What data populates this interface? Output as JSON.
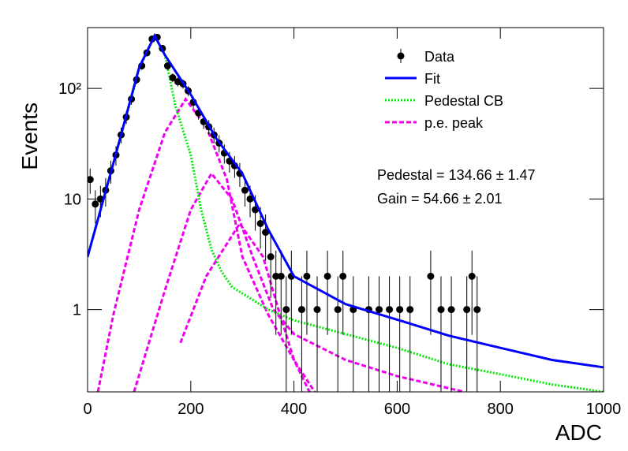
{
  "chart_data": {
    "type": "scatter",
    "x_label": "ADC",
    "y_label": "Events",
    "xlim": [
      0,
      1000
    ],
    "ylim": [
      0.18,
      355
    ],
    "log_y": true,
    "xticks": [
      0,
      200,
      400,
      600,
      800,
      1000
    ],
    "yticks": [
      1,
      10,
      {
        "value": 100,
        "label": "10²"
      }
    ],
    "legend": "top-right",
    "annotations": [
      "Pedestal = 134.66 ± 1.47",
      "Gain = 54.66 ± 2.01"
    ],
    "data": {
      "name": "Data",
      "color": "#000000",
      "x": [
        5,
        15,
        25,
        35,
        45,
        55,
        65,
        75,
        85,
        95,
        105,
        115,
        125,
        135,
        145,
        155,
        165,
        175,
        185,
        195,
        205,
        215,
        225,
        235,
        245,
        255,
        265,
        275,
        285,
        295,
        305,
        315,
        325,
        335,
        345,
        355,
        365,
        375,
        385,
        395,
        415,
        425,
        445,
        465,
        485,
        495,
        515,
        545,
        565,
        585,
        605,
        625,
        665,
        685,
        705,
        735,
        745,
        755
      ],
      "values": [
        15,
        9,
        10,
        12,
        18,
        25,
        38,
        55,
        80,
        120,
        160,
        210,
        280,
        290,
        230,
        160,
        125,
        115,
        110,
        95,
        75,
        60,
        50,
        45,
        38,
        32,
        26,
        22,
        20,
        17,
        12,
        10,
        8,
        6,
        5,
        3,
        2,
        2,
        1,
        2,
        1,
        2,
        1,
        2,
        1,
        2,
        1,
        1,
        1,
        1,
        1,
        1,
        2,
        1,
        1,
        1,
        2,
        1
      ],
      "errors": [
        3.87,
        3,
        3.16,
        3.46,
        4.24,
        5,
        6.16,
        7.42,
        8.94,
        10.95,
        12.65,
        14.49,
        16.73,
        17.03,
        15.17,
        12.65,
        11.18,
        10.72,
        10.49,
        9.75,
        8.66,
        7.75,
        7.07,
        6.71,
        6.16,
        5.66,
        5.1,
        4.69,
        4.47,
        4.12,
        3.46,
        3.16,
        2.83,
        2.45,
        2.24,
        1.73,
        1.41,
        1.41,
        1,
        1.41,
        1,
        1.41,
        1,
        1.41,
        1,
        1.41,
        1,
        1,
        1,
        1,
        1,
        1,
        1.41,
        1,
        1,
        1,
        1.41,
        1
      ]
    },
    "curves": [
      {
        "name": "Fit",
        "color": "#0000ff",
        "style": "solid",
        "x": [
          0,
          50,
          100,
          130,
          150,
          180,
          200,
          250,
          300,
          350,
          400,
          500,
          600,
          700,
          800,
          900,
          1000
        ],
        "values": [
          3,
          21,
          155,
          300,
          200,
          122,
          88,
          35,
          17,
          5.3,
          2,
          1.12,
          0.81,
          0.58,
          0.45,
          0.35,
          0.3
        ]
      },
      {
        "name": "Pedestal CB",
        "color": "#00ee00",
        "style": "dotted",
        "x": [
          0,
          50,
          100,
          130,
          150,
          170,
          200,
          220,
          240,
          260,
          280,
          300,
          350,
          400,
          500,
          600,
          700,
          800,
          900,
          1000
        ],
        "values": [
          3,
          21,
          150,
          300,
          200,
          70,
          25,
          8,
          3.5,
          2.2,
          1.6,
          1.4,
          1,
          0.8,
          0.6,
          0.45,
          0.32,
          0.26,
          0.21,
          0.18
        ]
      }
    ],
    "pe_peak": {
      "name": "p.e. peak",
      "color": "#ee00ee",
      "style": "dashed",
      "curves": [
        {
          "x": [
            20,
            50,
            100,
            150,
            190,
            230,
            270,
            300,
            350,
            400,
            430
          ],
          "values": [
            0.18,
            0.9,
            8,
            40,
            80,
            45,
            15,
            3,
            0.9,
            0.35,
            0.18
          ]
        },
        {
          "x": [
            90,
            150,
            200,
            240,
            280,
            320,
            360,
            400,
            500,
            600,
            730
          ],
          "values": [
            0.18,
            1.5,
            8,
            17,
            10,
            3,
            1,
            0.6,
            0.35,
            0.25,
            0.18
          ]
        },
        {
          "x": [
            180,
            230,
            295,
            340,
            370,
            400,
            440
          ],
          "values": [
            0.5,
            2,
            6,
            3,
            1,
            0.35,
            0.18
          ]
        }
      ]
    }
  }
}
